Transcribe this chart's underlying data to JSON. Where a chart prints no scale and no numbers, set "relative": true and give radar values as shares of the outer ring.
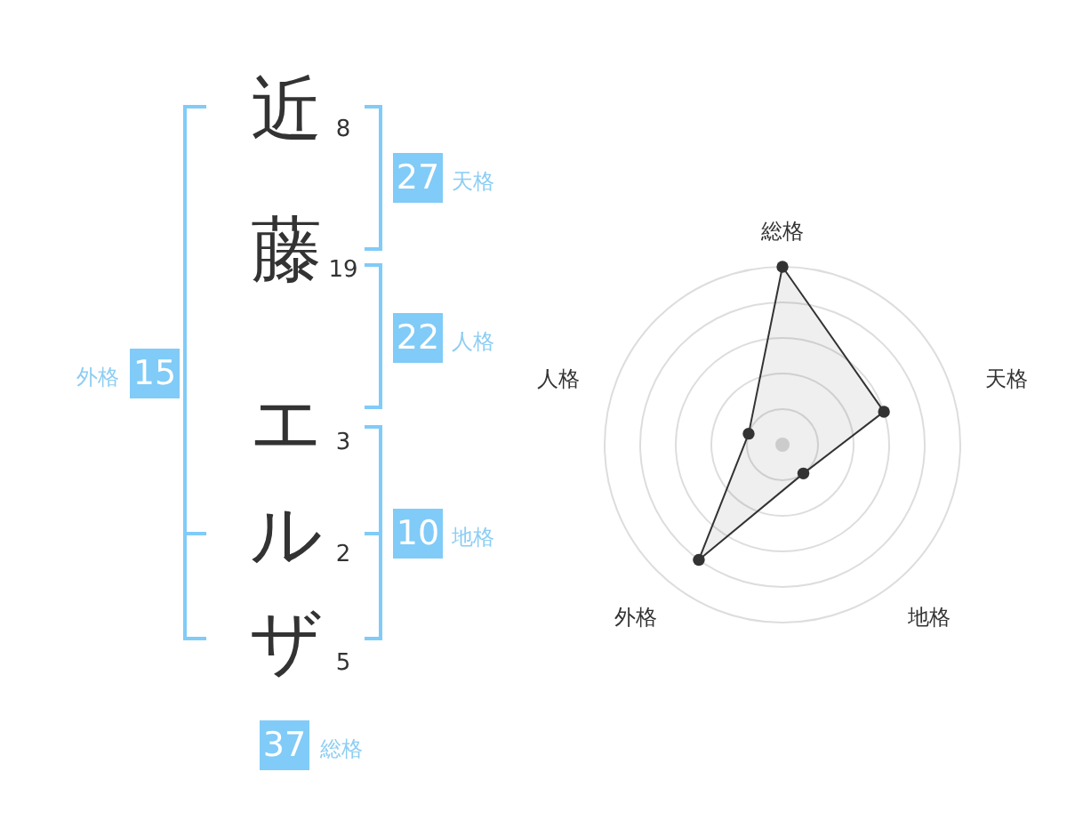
{
  "chart_data": [
    {
      "type": "other",
      "categories": [
        "近",
        "藤",
        "エ",
        "ル",
        "ザ"
      ],
      "values": [
        8,
        19,
        3,
        2,
        5
      ],
      "data_labels": true,
      "annotations": [
        "27",
        "天格",
        "22",
        "人格",
        "10",
        "地格",
        "15",
        "外格",
        "37",
        "総格"
      ]
    },
    {
      "type": "radar",
      "categories": [
        "総格",
        "天格",
        "地格",
        "外格",
        "人格"
      ],
      "relative": true,
      "grid": true,
      "marker": "circle",
      "series": [
        {
          "color": "#333333",
          "values": [
            1,
            0.6,
            0.2,
            0.8,
            0.2
          ]
        }
      ]
    }
  ]
}
